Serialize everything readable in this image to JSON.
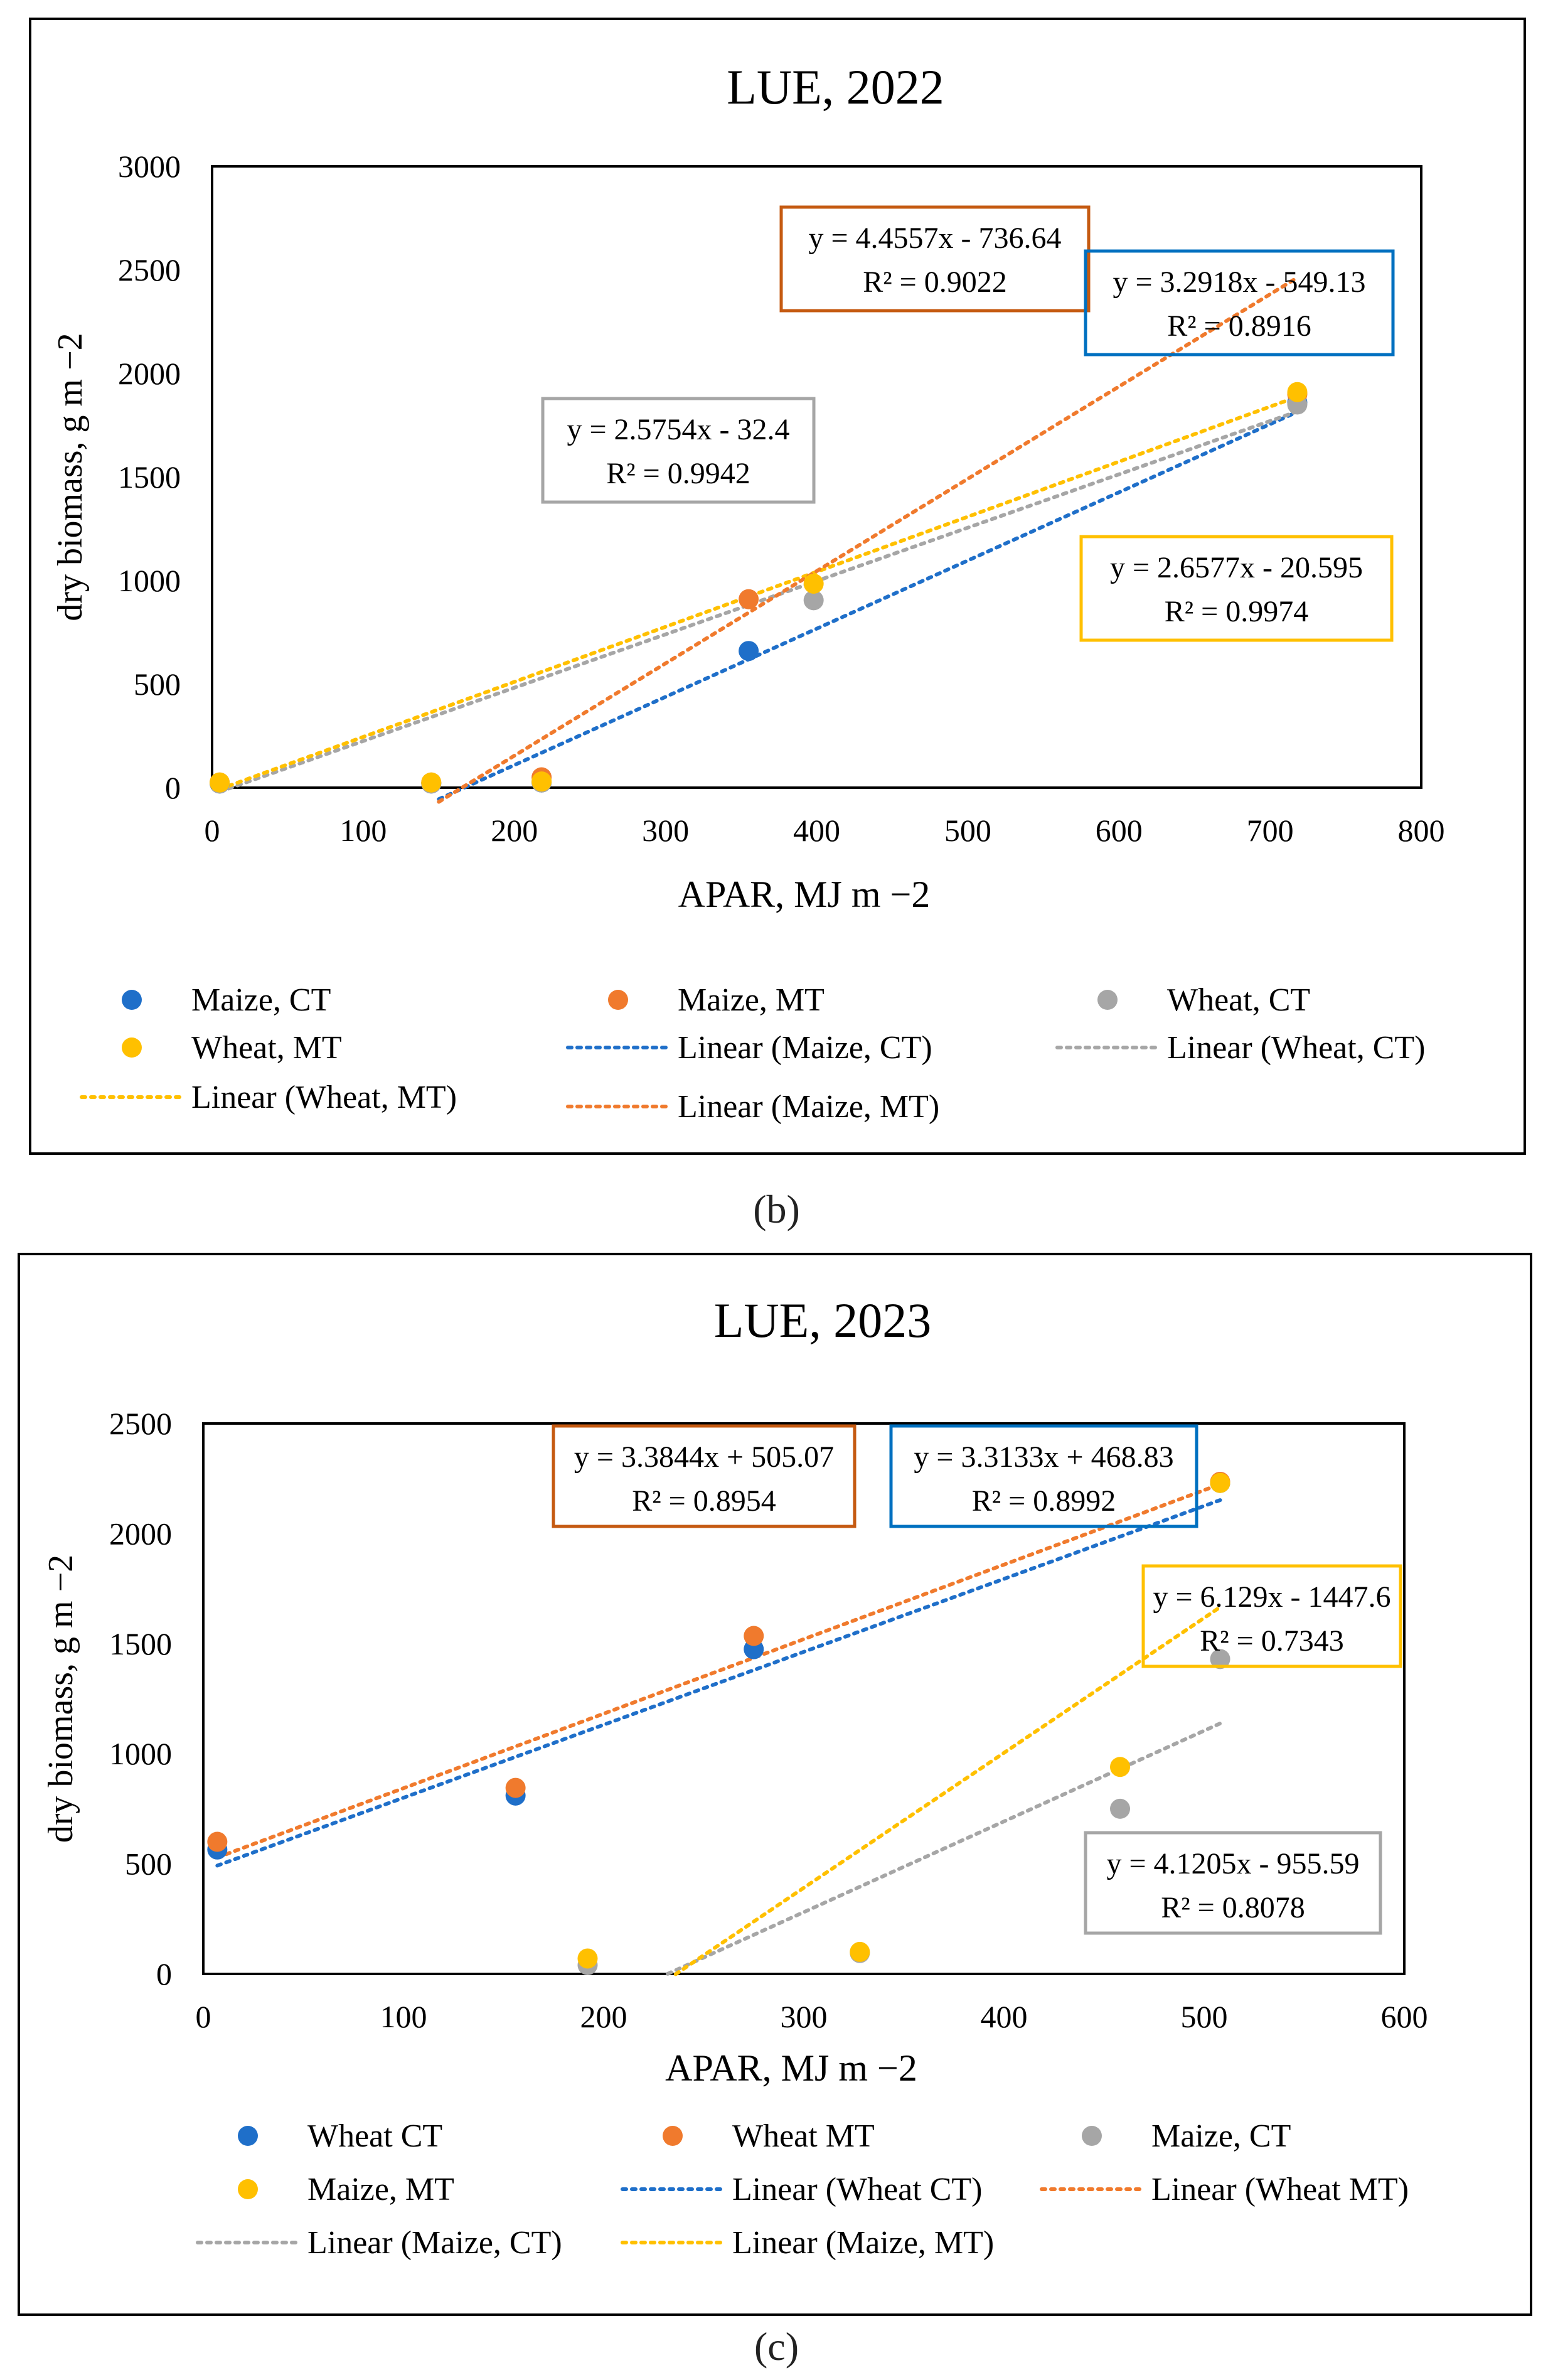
{
  "chart_data": [
    {
      "type": "scatter",
      "title": "LUE, 2022",
      "xlabel": "APAR, MJ  m −2",
      "ylabel": "dry biomass, g m −2",
      "xlim": [
        0,
        800
      ],
      "ylim": [
        0,
        3000
      ],
      "xticks": [
        "0",
        "100",
        "200",
        "300",
        "400",
        "500",
        "600",
        "700",
        "800"
      ],
      "yticks": [
        "0",
        "500",
        "1000",
        "1500",
        "2000",
        "2500",
        "3000"
      ],
      "grid": false,
      "legend_position": "bottom",
      "series": [
        {
          "name": "Maize, CT",
          "color": "#1f6fc9",
          "x": [
            5,
            145,
            218,
            355,
            718
          ],
          "y": [
            20,
            20,
            25,
            660,
            1860
          ]
        },
        {
          "name": "Maize, MT",
          "color": "#f07a2d",
          "x": [
            5,
            145,
            218,
            355,
            718
          ],
          "y": [
            25,
            25,
            50,
            910,
            1900
          ]
        },
        {
          "name": "Wheat, CT",
          "color": "#a6a6a6",
          "x": [
            5,
            145,
            218,
            398,
            718
          ],
          "y": [
            20,
            20,
            25,
            905,
            1850
          ]
        },
        {
          "name": "Wheat, MT",
          "color": "#ffc000",
          "x": [
            5,
            145,
            218,
            398,
            718
          ],
          "y": [
            25,
            25,
            30,
            985,
            1910
          ]
        }
      ],
      "trendlines": [
        {
          "name": "Linear (Maize, CT)",
          "color": "#1f6fc9",
          "slope": 3.2918,
          "intercept": -549.13,
          "x0": 150,
          "x1": 718
        },
        {
          "name": "Linear (Wheat, CT)",
          "color": "#a6a6a6",
          "slope": 2.5754,
          "intercept": -32.4,
          "x0": 5,
          "x1": 718
        },
        {
          "name": "Linear (Wheat, MT)",
          "color": "#ffc000",
          "slope": 2.6577,
          "intercept": -20.595,
          "x0": 5,
          "x1": 718
        },
        {
          "name": "Linear (Maize, MT)",
          "color": "#f07a2d",
          "slope": 4.4557,
          "intercept": -736.64,
          "x0": 150,
          "x1": 718
        }
      ],
      "annotations": [
        {
          "eq": "y = 4.4557x - 736.64",
          "r2": "R² = 0.9022",
          "color": "#c55a11"
        },
        {
          "eq": "y = 3.2918x - 549.13",
          "r2": "R² = 0.8916",
          "color": "#0070c0"
        },
        {
          "eq": "y = 2.5754x - 32.4",
          "r2": "R² = 0.9942",
          "color": "#a6a6a6"
        },
        {
          "eq": "y = 2.6577x - 20.595",
          "r2": "R² = 0.9974",
          "color": "#ffc000"
        }
      ],
      "legend": [
        {
          "label": "Maize, CT",
          "kind": "marker",
          "color": "#1f6fc9"
        },
        {
          "label": "Maize, MT",
          "kind": "marker",
          "color": "#f07a2d"
        },
        {
          "label": "Wheat, CT",
          "kind": "marker",
          "color": "#a6a6a6"
        },
        {
          "label": "Wheat, MT",
          "kind": "marker",
          "color": "#ffc000"
        },
        {
          "label": "Linear (Maize, CT)",
          "kind": "line",
          "color": "#1f6fc9"
        },
        {
          "label": "Linear (Wheat, CT)",
          "kind": "line",
          "color": "#a6a6a6"
        },
        {
          "label": "Linear (Wheat, MT)",
          "kind": "line",
          "color": "#ffc000"
        },
        {
          "label": "Linear (Maize, MT)",
          "kind": "line",
          "color": "#f07a2d"
        }
      ]
    },
    {
      "type": "scatter",
      "title": "LUE, 2023",
      "xlabel": "APAR, MJ  m −2",
      "ylabel": "dry biomass, g m −2",
      "xlim": [
        0,
        600
      ],
      "ylim": [
        0,
        2500
      ],
      "xticks": [
        "0",
        "100",
        "200",
        "300",
        "400",
        "500",
        "600"
      ],
      "yticks": [
        "0",
        "500",
        "1000",
        "1500",
        "2000",
        "2500"
      ],
      "grid": false,
      "legend_position": "bottom",
      "series": [
        {
          "name": "Wheat CT",
          "color": "#1f6fc9",
          "x": [
            7,
            156,
            275,
            508
          ],
          "y": [
            565,
            810,
            1475,
            2230
          ]
        },
        {
          "name": "Wheat MT",
          "color": "#f07a2d",
          "x": [
            7,
            156,
            275,
            508
          ],
          "y": [
            600,
            845,
            1535,
            2235
          ]
        },
        {
          "name": "Maize, CT",
          "color": "#a6a6a6",
          "x": [
            192,
            328,
            458,
            508
          ],
          "y": [
            40,
            95,
            750,
            1430
          ]
        },
        {
          "name": "Maize, MT",
          "color": "#ffc000",
          "x": [
            192,
            328,
            458,
            508
          ],
          "y": [
            70,
            100,
            940,
            2230
          ]
        }
      ],
      "trendlines": [
        {
          "name": "Linear (Wheat CT)",
          "color": "#1f6fc9",
          "slope": 3.3133,
          "intercept": 468.83,
          "x0": 7,
          "x1": 508
        },
        {
          "name": "Linear (Wheat MT)",
          "color": "#f07a2d",
          "slope": 3.3844,
          "intercept": 505.07,
          "x0": 7,
          "x1": 508
        },
        {
          "name": "Linear (Maize, CT)",
          "color": "#a6a6a6",
          "slope": 4.1205,
          "intercept": -955.59,
          "x0": 232,
          "x1": 508
        },
        {
          "name": "Linear (Maize, MT)",
          "color": "#ffc000",
          "slope": 6.129,
          "intercept": -1447.6,
          "x0": 236,
          "x1": 508
        }
      ],
      "annotations": [
        {
          "eq": "y = 3.3844x + 505.07",
          "r2": "R² = 0.8954",
          "color": "#c55a11"
        },
        {
          "eq": "y = 3.3133x + 468.83",
          "r2": "R² = 0.8992",
          "color": "#0070c0"
        },
        {
          "eq": "y = 6.129x - 1447.6",
          "r2": "R² = 0.7343",
          "color": "#ffc000"
        },
        {
          "eq": "y = 4.1205x - 955.59",
          "r2": "R² = 0.8078",
          "color": "#a6a6a6"
        }
      ],
      "legend": [
        {
          "label": "Wheat CT",
          "kind": "marker",
          "color": "#1f6fc9"
        },
        {
          "label": "Wheat MT",
          "kind": "marker",
          "color": "#f07a2d"
        },
        {
          "label": "Maize, CT",
          "kind": "marker",
          "color": "#a6a6a6"
        },
        {
          "label": "Maize, MT",
          "kind": "marker",
          "color": "#ffc000"
        },
        {
          "label": "Linear (Wheat CT)",
          "kind": "line",
          "color": "#1f6fc9"
        },
        {
          "label": "Linear (Wheat MT)",
          "kind": "line",
          "color": "#f07a2d"
        },
        {
          "label": "Linear (Maize, CT)",
          "kind": "line",
          "color": "#a6a6a6"
        },
        {
          "label": "Linear (Maize, MT)",
          "kind": "line",
          "color": "#ffc000"
        }
      ]
    }
  ],
  "captions": [
    "(b)",
    "(c)"
  ]
}
